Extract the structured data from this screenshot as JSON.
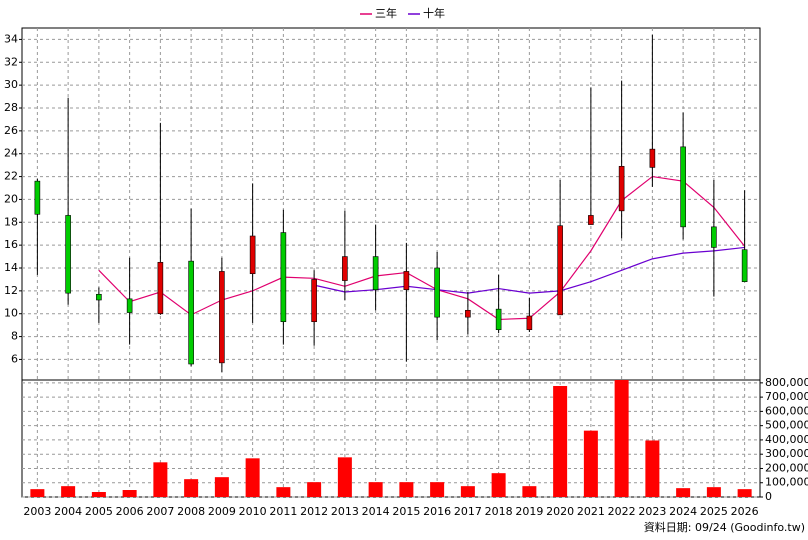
{
  "chart_data": [
    {
      "type": "candlestick",
      "categories": [
        "2003",
        "2004",
        "2005",
        "2006",
        "2007",
        "2008",
        "2009",
        "2010",
        "2011",
        "2012",
        "2013",
        "2014",
        "2015",
        "2016",
        "2017",
        "2018",
        "2019",
        "2020",
        "2021",
        "2022",
        "2023",
        "2024",
        "2025",
        "2026"
      ],
      "open": [
        21.6,
        18.6,
        11.7,
        11.3,
        10.0,
        14.6,
        5.7,
        13.5,
        17.1,
        9.3,
        12.9,
        15.0,
        12.1,
        14.0,
        9.7,
        10.4,
        8.6,
        9.9,
        17.8,
        19.0,
        22.8,
        24.6,
        17.6,
        15.6
      ],
      "high": [
        21.8,
        28.9,
        12.3,
        14.9,
        26.7,
        19.2,
        14.9,
        21.4,
        19.1,
        13.8,
        19.0,
        17.8,
        16.2,
        15.4,
        11.9,
        13.4,
        11.4,
        21.7,
        29.8,
        30.4,
        34.4,
        27.6,
        21.7,
        20.8
      ],
      "low": [
        13.4,
        10.8,
        9.2,
        7.3,
        9.9,
        5.4,
        4.9,
        9.2,
        7.3,
        7.2,
        11.2,
        10.3,
        5.8,
        7.7,
        8.2,
        8.3,
        8.4,
        9.9,
        17.8,
        16.6,
        21.1,
        16.5,
        11.5,
        12.8
      ],
      "close": [
        18.7,
        11.8,
        11.2,
        10.1,
        14.5,
        5.6,
        13.7,
        16.8,
        9.3,
        13.0,
        15.0,
        12.1,
        13.7,
        9.7,
        10.3,
        8.6,
        9.8,
        17.7,
        18.6,
        22.9,
        24.4,
        17.6,
        15.8,
        12.8
      ],
      "up_color": "#e00000",
      "down_color": "#00cc00",
      "lines": [
        {
          "name": "三年",
          "color": "#e0006e",
          "values": [
            null,
            null,
            13.8,
            11.05,
            11.9,
            9.9,
            11.2,
            12.0,
            13.2,
            13.1,
            12.4,
            13.3,
            13.6,
            12.1,
            11.3,
            9.5,
            9.6,
            11.9,
            15.5,
            19.9,
            22.0,
            21.6,
            19.3,
            15.9
          ]
        },
        {
          "name": "十年",
          "color": "#6a00d0",
          "values": [
            null,
            null,
            null,
            null,
            null,
            null,
            null,
            null,
            null,
            12.5,
            11.9,
            12.1,
            12.4,
            12.1,
            11.8,
            12.2,
            11.8,
            12.0,
            12.8,
            13.8,
            14.8,
            15.3,
            15.5,
            15.8
          ]
        }
      ],
      "ylim": [
        4.2,
        35
      ],
      "yticks": [
        6,
        8,
        10,
        12,
        14,
        16,
        18,
        20,
        22,
        24,
        26,
        28,
        30,
        32,
        34
      ],
      "grid": true
    },
    {
      "type": "bar",
      "color": "#ff0000",
      "values": [
        55000,
        76000,
        35000,
        49000,
        243000,
        125000,
        139000,
        271000,
        69000,
        104000,
        278000,
        104000,
        104000,
        104000,
        76000,
        167000,
        76000,
        778000,
        465000,
        820000,
        396000,
        62000,
        69000,
        55000
      ],
      "ylim": [
        0,
        820000
      ],
      "yticks": [
        0,
        {
          "value": 100000,
          "label": "100,000"
        },
        {
          "value": 200000,
          "label": "200,000"
        },
        {
          "value": 300000,
          "label": "300,000"
        },
        {
          "value": 400000,
          "label": "400,000"
        },
        {
          "value": 500000,
          "label": "500,000"
        },
        {
          "value": 600000,
          "label": "600,000"
        },
        {
          "value": 700000,
          "label": "700,000"
        },
        {
          "value": 800000,
          "label": "800,000"
        }
      ],
      "grid": true,
      "note": "資料日期: 09/24 (Goodinfo.tw)"
    }
  ]
}
